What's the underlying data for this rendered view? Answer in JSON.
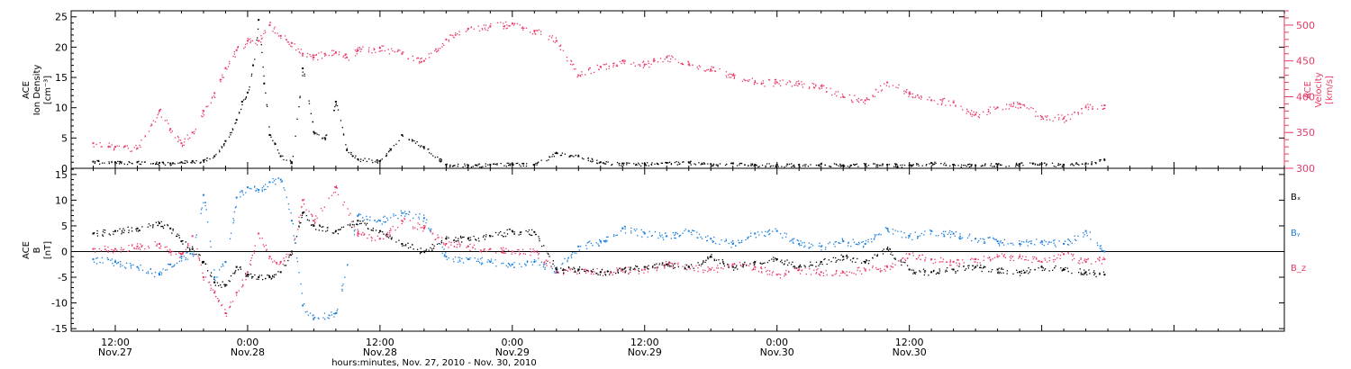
{
  "chart_data": [
    {
      "type": "scatter",
      "panel": "top",
      "ylabel_left": [
        "ACE",
        "Ion Density",
        "[cm⁻³]"
      ],
      "ylabel_right": [
        "ACE",
        "Velocity",
        "[km/s]"
      ],
      "ylim_left": [
        0,
        26
      ],
      "ylim_right": [
        300,
        520
      ],
      "yticks_left": [
        "0",
        "5",
        "10",
        "15",
        "20",
        "25"
      ],
      "yticks_right": [
        "300",
        "350",
        "400",
        "450",
        "500"
      ],
      "series": [
        {
          "axis": "left",
          "color": "#000000",
          "x": [
            -2,
            0,
            2,
            4,
            5,
            6,
            7,
            8,
            9,
            10,
            11,
            11.5,
            12,
            12.5,
            13,
            13.5,
            14,
            14.5,
            15,
            16,
            17,
            18,
            19,
            20,
            21,
            22,
            24,
            26,
            28,
            30,
            32,
            34,
            36,
            38,
            40,
            42,
            44,
            46,
            48,
            50,
            52,
            54,
            56,
            58,
            60,
            62,
            64,
            66,
            68,
            70,
            72,
            74,
            76,
            78,
            80,
            82,
            84,
            86,
            88,
            89.7
          ],
          "y": [
            1.1,
            1.0,
            1.0,
            0.9,
            0.8,
            1.0,
            1.2,
            1.3,
            2.0,
            4.5,
            8.0,
            11.0,
            12.5,
            17.0,
            24.5,
            14.0,
            5.5,
            4.0,
            2.0,
            1.0,
            16.5,
            6.0,
            5.0,
            11.0,
            3.0,
            1.5,
            1.2,
            5.5,
            3.5,
            0.6,
            0.5,
            0.6,
            0.7,
            0.6,
            2.5,
            2.0,
            1.0,
            0.8,
            0.7,
            0.9,
            1.0,
            0.7,
            0.8,
            0.6,
            0.6,
            0.6,
            0.7,
            0.5,
            0.6,
            0.6,
            0.5,
            0.9,
            0.6,
            0.5,
            0.6,
            0.7,
            0.7,
            0.6,
            0.8,
            1.4
          ]
        },
        {
          "axis": "right",
          "color": "#e83a66",
          "x": [
            -2,
            0,
            2,
            4,
            5,
            6,
            7,
            8,
            9,
            10,
            11,
            12,
            13,
            14,
            15,
            16,
            17,
            18,
            19,
            20,
            21,
            22,
            24,
            26,
            28,
            30,
            32,
            34,
            36,
            38,
            40,
            42,
            44,
            46,
            48,
            50,
            52,
            54,
            56,
            58,
            60,
            62,
            64,
            66,
            68,
            70,
            72,
            74,
            76,
            78,
            80,
            82,
            84,
            86,
            88,
            89.7
          ],
          "y": [
            335,
            330,
            328,
            380,
            355,
            335,
            350,
            380,
            405,
            440,
            465,
            478,
            478,
            500,
            485,
            475,
            460,
            455,
            460,
            462,
            455,
            465,
            468,
            460,
            450,
            480,
            495,
            498,
            502,
            492,
            478,
            430,
            442,
            450,
            445,
            455,
            445,
            438,
            430,
            420,
            420,
            418,
            415,
            400,
            395,
            420,
            405,
            395,
            392,
            375,
            385,
            390,
            372,
            370,
            385,
            388
          ]
        }
      ]
    },
    {
      "type": "scatter",
      "panel": "bottom",
      "ylabel_left": [
        "ACE",
        "B",
        "[nT]"
      ],
      "ylim": [
        -15.5,
        16.2
      ],
      "yticks": [
        "-15",
        "-10",
        "-5",
        "0",
        "5",
        "10",
        "15"
      ],
      "legend": [
        "Bₓ",
        "Bᵧ",
        "B_z"
      ],
      "series": [
        {
          "name": "Bₓ",
          "color": "#000000",
          "x": [
            -2,
            0,
            2,
            4,
            5,
            6,
            7,
            8,
            9,
            10,
            11,
            12,
            13,
            14,
            15,
            16,
            17,
            18,
            20,
            22,
            24,
            26,
            28,
            30,
            32,
            34,
            36,
            38,
            40,
            42,
            44,
            46,
            48,
            50,
            52,
            54,
            56,
            58,
            60,
            62,
            64,
            66,
            68,
            70,
            72,
            74,
            76,
            78,
            80,
            82,
            84,
            86,
            88,
            89.7
          ],
          "y": [
            3.5,
            4.0,
            4.5,
            5.5,
            4.5,
            2.0,
            0.5,
            -2.0,
            -6.0,
            -6.5,
            -3.0,
            -4.5,
            -5.0,
            -5.0,
            -4.0,
            0.0,
            7.5,
            5.0,
            4.0,
            6.0,
            4.0,
            1.5,
            0.0,
            2.5,
            2.5,
            3.0,
            4.0,
            3.8,
            -3.5,
            -3.5,
            -4.0,
            -3.5,
            -3.0,
            -2.5,
            -3.0,
            -1.0,
            -3.0,
            -2.0,
            -1.5,
            -3.0,
            -2.0,
            -1.0,
            -2.0,
            0.5,
            -3.5,
            -4.0,
            -3.5,
            -3.0,
            -3.5,
            -4.0,
            -3.0,
            -3.5,
            -4.0,
            -4.5
          ]
        },
        {
          "name": "Bᵧ",
          "color": "#1a7fdb",
          "x": [
            -2,
            0,
            2,
            4,
            5,
            6,
            7,
            8,
            9,
            10,
            11,
            12,
            13,
            14,
            15,
            16,
            17,
            18,
            20,
            22,
            24,
            26,
            28,
            30,
            32,
            34,
            36,
            38,
            40,
            42,
            44,
            46,
            48,
            50,
            52,
            54,
            56,
            58,
            60,
            62,
            64,
            66,
            68,
            70,
            72,
            74,
            76,
            78,
            80,
            82,
            84,
            86,
            88,
            89.7
          ],
          "y": [
            -1.5,
            -2.0,
            -3.0,
            -4.5,
            -2.5,
            -1.0,
            -0.5,
            11.0,
            -5.0,
            -2.0,
            10.5,
            12.5,
            12.0,
            13.5,
            14.0,
            6.0,
            -10.5,
            -13.0,
            -12.0,
            7.0,
            6.0,
            7.5,
            6.5,
            -1.0,
            -1.5,
            -2.0,
            -2.5,
            -2.0,
            -3.5,
            1.0,
            2.0,
            4.5,
            3.5,
            3.0,
            4.0,
            2.5,
            1.5,
            3.5,
            4.0,
            1.5,
            1.0,
            2.0,
            1.5,
            4.5,
            3.0,
            4.0,
            3.5,
            2.5,
            2.0,
            1.5,
            2.0,
            1.5,
            4.0,
            0.0
          ]
        },
        {
          "name": "B_z",
          "color": "#e83a66",
          "x": [
            -2,
            0,
            2,
            4,
            5,
            6,
            7,
            8,
            9,
            10,
            11,
            12,
            13,
            14,
            15,
            16,
            17,
            18,
            20,
            22,
            24,
            26,
            28,
            30,
            32,
            34,
            36,
            38,
            40,
            42,
            44,
            46,
            48,
            50,
            52,
            54,
            56,
            58,
            60,
            62,
            64,
            66,
            68,
            70,
            72,
            74,
            76,
            78,
            80,
            82,
            84,
            86,
            88,
            89.7
          ],
          "y": [
            0.5,
            0.5,
            1.0,
            1.5,
            0.0,
            -0.5,
            3.0,
            -5.0,
            -8.0,
            -12.0,
            -8.0,
            -4.0,
            3.5,
            -1.0,
            -2.0,
            0.0,
            10.0,
            6.0,
            12.5,
            3.5,
            2.5,
            6.0,
            4.5,
            1.5,
            1.0,
            0.5,
            0.0,
            0.0,
            -4.0,
            -3.5,
            -4.0,
            -3.5,
            -3.5,
            -2.5,
            -3.0,
            -3.5,
            -2.5,
            -3.0,
            -4.5,
            -3.5,
            -4.0,
            -4.0,
            -3.5,
            -3.0,
            -0.5,
            -1.5,
            -2.0,
            -1.5,
            -1.0,
            -1.0,
            -2.0,
            -0.5,
            -2.0,
            -1.5
          ]
        }
      ]
    }
  ],
  "time_axis": {
    "xlim": [
      -4,
      106
    ],
    "tick_hours": [
      0,
      12,
      24,
      36,
      48,
      60,
      72,
      84,
      96
    ],
    "tick_labels": [
      "12:00",
      "0:00",
      "12:00",
      "0:00",
      "12:00",
      "0:00",
      "12:00"
    ],
    "date_labels": [
      "Nov.27",
      "Nov.28",
      "Nov.28",
      "Nov.29",
      "Nov.29",
      "Nov.30",
      "Nov.30"
    ],
    "label_hours": [
      0,
      12,
      24,
      36,
      48,
      60,
      72
    ],
    "xlabel": "hours:minutes, Nov. 27, 2010 - Nov. 30, 2010"
  }
}
